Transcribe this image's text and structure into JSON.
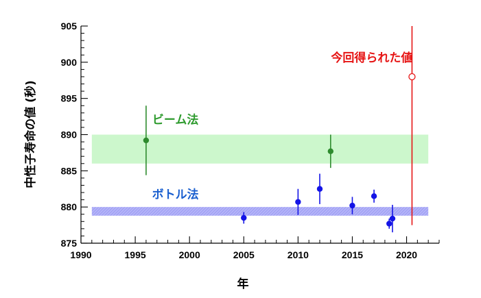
{
  "chart_data": {
    "type": "scatter",
    "xlabel": "年",
    "ylabel": "中性子寿命の値 (秒)",
    "xlim": [
      1990,
      2023
    ],
    "ylim": [
      875,
      905
    ],
    "x_ticks": [
      1990,
      1995,
      2000,
      2005,
      2010,
      2015,
      2020
    ],
    "y_ticks": [
      875,
      880,
      885,
      890,
      895,
      900,
      905
    ],
    "grid": false,
    "bands": [
      {
        "label": "ビーム法",
        "x_range": [
          1991,
          2022
        ],
        "y_range": [
          886,
          890
        ],
        "color": "#ccf7cc"
      },
      {
        "label": "ボトル法",
        "x_range": [
          1991,
          2022
        ],
        "y_range": [
          878.8,
          880.0
        ],
        "color": "#aaaaf5"
      }
    ],
    "series": [
      {
        "name": "ビーム法",
        "color": "#2e8b2e",
        "points": [
          {
            "x": 1996,
            "y": 889.2,
            "err": 4.8
          },
          {
            "x": 2013,
            "y": 887.7,
            "err": 2.3
          }
        ]
      },
      {
        "name": "ボトル法",
        "color": "#1414e6",
        "points": [
          {
            "x": 2005,
            "y": 878.5,
            "err": 0.8
          },
          {
            "x": 2010,
            "y": 880.7,
            "err": 1.8
          },
          {
            "x": 2012,
            "y": 882.5,
            "err": 2.1
          },
          {
            "x": 2015,
            "y": 880.2,
            "err": 1.2
          },
          {
            "x": 2017,
            "y": 881.5,
            "err": 0.9
          },
          {
            "x": 2018.4,
            "y": 877.7,
            "err": 0.7
          },
          {
            "x": 2018.7,
            "y": 878.4,
            "err": 1.9
          }
        ]
      },
      {
        "name": "今回得られた値",
        "color": "#e61414",
        "marker": "open-circle",
        "points": [
          {
            "x": 2020.5,
            "y": 898,
            "err_low": 20.5,
            "err_high": 8
          }
        ]
      }
    ],
    "annotations": [
      {
        "text": "今回得られた値",
        "color": "#e61414",
        "x": 2016.8,
        "y": 900.1
      },
      {
        "text": "ビーム法",
        "color": "#2e9b2e",
        "x": 1998.7,
        "y": 891.5
      },
      {
        "text": "ボトル法",
        "color": "#1a5fcf",
        "x": 1998.7,
        "y": 881.2
      }
    ]
  }
}
